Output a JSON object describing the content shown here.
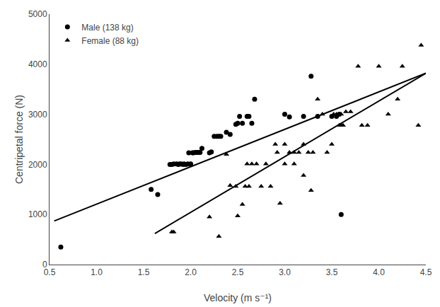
{
  "chart_data": {
    "type": "scatter",
    "xlabel": "Velocity (m s⁻¹)",
    "ylabel": "Centripetal force (N)",
    "series": [
      {
        "name": "Male (138 kg)",
        "type": "scatter",
        "marker": "circle",
        "color": "black",
        "x": [
          0.62,
          1.58,
          1.65,
          1.78,
          1.8,
          1.82,
          1.85,
          1.87,
          1.88,
          1.9,
          1.92,
          1.93,
          1.95,
          1.97,
          1.98,
          2.0,
          2.0,
          2.02,
          2.03,
          2.05,
          2.07,
          2.08,
          2.1,
          2.12,
          2.2,
          2.22,
          2.25,
          2.28,
          2.3,
          2.32,
          2.38,
          2.42,
          2.48,
          2.5,
          2.52,
          2.55,
          2.6,
          2.62,
          2.65,
          2.68,
          3.0,
          3.05,
          3.2,
          3.28,
          3.35,
          3.5,
          3.55,
          3.58,
          3.6
        ],
        "values": [
          350,
          1500,
          1400,
          2000,
          2000,
          2010,
          2010,
          2000,
          2010,
          2010,
          2000,
          2010,
          2000,
          2010,
          2230,
          2010,
          2000,
          2230,
          2230,
          2240,
          2240,
          2240,
          2240,
          2320,
          2230,
          2250,
          2560,
          2560,
          2560,
          2560,
          2640,
          2600,
          2800,
          2820,
          2960,
          2820,
          2960,
          2960,
          2820,
          3300,
          3000,
          2950,
          2960,
          3760,
          2960,
          2960,
          2960,
          3000,
          1000
        ]
      },
      {
        "name": "Female (88 kg)",
        "type": "scatter",
        "marker": "triangle",
        "color": "black",
        "x": [
          1.8,
          1.82,
          2.2,
          2.3,
          2.38,
          2.42,
          2.48,
          2.5,
          2.55,
          2.58,
          2.6,
          2.62,
          2.65,
          2.7,
          2.75,
          2.8,
          2.85,
          2.9,
          2.92,
          2.95,
          3.0,
          3.0,
          3.05,
          3.1,
          3.1,
          3.15,
          3.2,
          3.2,
          3.25,
          3.28,
          3.3,
          3.35,
          3.4,
          3.45,
          3.5,
          3.52,
          3.55,
          3.58,
          3.6,
          3.6,
          3.62,
          3.65,
          3.7,
          3.78,
          3.82,
          3.88,
          4.0,
          4.1,
          4.2,
          4.25,
          4.42,
          4.45
        ],
        "values": [
          650,
          650,
          950,
          560,
          2200,
          1580,
          1560,
          970,
          1200,
          1560,
          2010,
          1560,
          2010,
          2010,
          1560,
          2010,
          1560,
          2400,
          2240,
          1220,
          2010,
          2400,
          2240,
          2010,
          2240,
          2240,
          1780,
          2400,
          2240,
          1480,
          2240,
          3300,
          3000,
          2240,
          2400,
          3000,
          3000,
          2780,
          3000,
          2780,
          2780,
          3050,
          3050,
          3960,
          2780,
          2780,
          3960,
          3000,
          3300,
          3960,
          2780,
          4380
        ]
      },
      {
        "type": "line",
        "line_style": "solid",
        "color": "black",
        "x": [
          0.55,
          4.5
        ],
        "values": [
          870,
          3820
        ]
      },
      {
        "type": "line",
        "line_style": "solid",
        "color": "black",
        "x": [
          1.62,
          4.5
        ],
        "values": [
          620,
          3820
        ]
      }
    ],
    "xlim": [
      0.5,
      4.5
    ],
    "ylim": [
      0,
      5000
    ],
    "xticks": [
      0.5,
      {
        "value": 1.0,
        "label": "1.0"
      },
      1.5,
      {
        "value": 2.0,
        "label": "2.0"
      },
      2.5,
      {
        "value": 3.0,
        "label": "3.0"
      },
      3.5,
      {
        "value": 4.0,
        "label": "4.0"
      },
      4.5
    ],
    "yticks": [
      0,
      1000,
      2000,
      3000,
      4000,
      5000
    ],
    "grid": false,
    "legend": "upper left"
  }
}
